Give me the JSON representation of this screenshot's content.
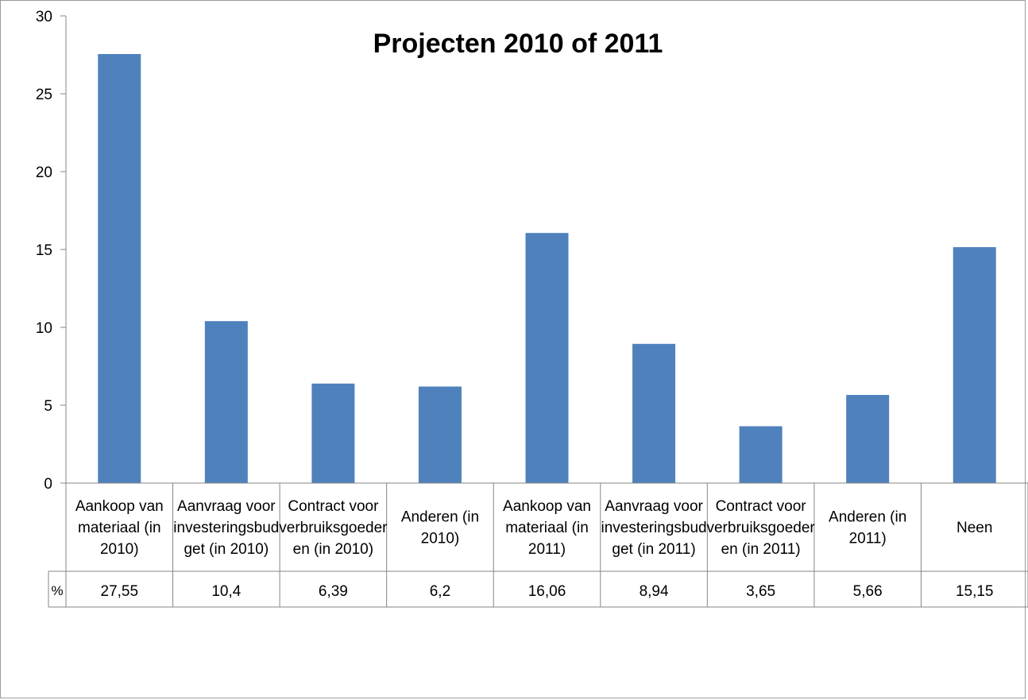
{
  "chart_data": {
    "type": "bar",
    "title": "Projecten 2010 of 2011",
    "categories": [
      [
        "Aankoop van",
        "materiaal (in",
        "2010)"
      ],
      [
        "Aanvraag voor",
        "investeringsbud",
        "get (in 2010)"
      ],
      [
        "Contract voor",
        "verbruiksgoeder",
        "en (in 2010)"
      ],
      [
        "Anderen (in",
        "2010)"
      ],
      [
        "Aankoop van",
        "materiaal (in",
        "2011)"
      ],
      [
        "Aanvraag voor",
        "investeringsbud",
        "get (in 2011)"
      ],
      [
        "Contract voor",
        "verbruiksgoeder",
        "en (in 2011)"
      ],
      [
        "Anderen (in",
        "2011)"
      ],
      [
        "Neen"
      ]
    ],
    "series": [
      {
        "name": "%",
        "values": [
          27.55,
          10.4,
          6.39,
          6.2,
          16.06,
          8.94,
          3.65,
          5.66,
          15.15
        ],
        "labels": [
          "27,55",
          "10,4",
          "6,39",
          "6,2",
          "16,06",
          "8,94",
          "3,65",
          "5,66",
          "15,15"
        ]
      }
    ],
    "ylim": [
      0,
      30
    ],
    "yticks": [
      0,
      5,
      10,
      15,
      20,
      25,
      30
    ],
    "bar_color": "#4F81BD",
    "data_table": true,
    "legend": "none"
  }
}
